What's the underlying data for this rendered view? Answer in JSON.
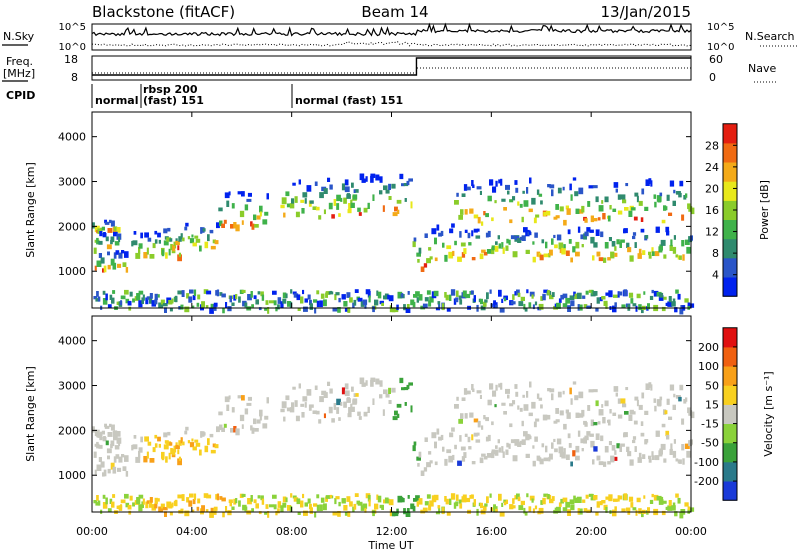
{
  "header": {
    "station": "Blackstone (fitACF)",
    "beam": "Beam 14",
    "date": "13/Jan/2015"
  },
  "panels": {
    "noise": {
      "left_label": "N.Sky",
      "right_label": "N.Search",
      "left_ticks": [
        "10^5",
        "10^0"
      ],
      "right_ticks": [
        "10^5",
        "10^0"
      ]
    },
    "freq": {
      "left_label_line1": "Freq.",
      "left_label_line2": "[MHz]",
      "right_label": "Nave",
      "left_ticks": [
        "18",
        "8"
      ],
      "right_ticks": [
        "60",
        "0"
      ]
    },
    "cpid": {
      "label": "CPID",
      "segments": [
        "normal",
        "rbsp 200",
        "(fast) 151",
        "normal (fast)  151"
      ]
    }
  },
  "chart_data": [
    {
      "type": "heatmap",
      "name": "power",
      "ylabel": "Slant Range [km]",
      "yticks": [
        1000,
        2000,
        3000,
        4000
      ],
      "ylim": [
        180,
        4550
      ],
      "xlim_hours": [
        0,
        24
      ],
      "colorbar": {
        "label": "Power [dB]",
        "ticks": [
          "28",
          "24",
          "20",
          "16",
          "12",
          "8",
          "4"
        ],
        "colors": [
          "#0022ee",
          "#2a55c8",
          "#2f8a6e",
          "#3fb24a",
          "#8acc2a",
          "#e8e81a",
          "#f4aa18",
          "#f06a12",
          "#e41e10"
        ]
      },
      "bands": [
        {
          "t": [
            0.0,
            1.0
          ],
          "r": [
            1900,
            2200
          ]
        },
        {
          "t": [
            0.0,
            1.1
          ],
          "r": [
            1500,
            1900
          ]
        },
        {
          "t": [
            0.1,
            1.4
          ],
          "r": [
            1050,
            1500
          ]
        },
        {
          "t": [
            1.5,
            3.5
          ],
          "r": [
            1350,
            1900
          ]
        },
        {
          "t": [
            2.8,
            5.0
          ],
          "r": [
            1500,
            2100
          ]
        },
        {
          "t": [
            5.0,
            7.0
          ],
          "r": [
            2000,
            2800
          ]
        },
        {
          "t": [
            7.5,
            10.5
          ],
          "r": [
            2200,
            3100
          ]
        },
        {
          "t": [
            10.0,
            12.8
          ],
          "r": [
            2300,
            3200
          ]
        },
        {
          "t": [
            12.8,
            14.5
          ],
          "r": [
            1100,
            2100
          ]
        },
        {
          "t": [
            14.5,
            24.0
          ],
          "r": [
            1300,
            2000
          ]
        },
        {
          "t": [
            14.5,
            24.0
          ],
          "r": [
            2100,
            3100
          ]
        },
        {
          "t": [
            0.0,
            24.0
          ],
          "r": [
            180,
            600
          ]
        }
      ]
    },
    {
      "type": "heatmap",
      "name": "velocity",
      "ylabel": "Slant Range [km]",
      "yticks": [
        1000,
        2000,
        3000,
        4000
      ],
      "ylim": [
        180,
        4550
      ],
      "xlim_hours": [
        0,
        24
      ],
      "xticks": [
        "00:00",
        "04:00",
        "08:00",
        "12:00",
        "16:00",
        "20:00",
        "00:00"
      ],
      "xlabel": "Time UT",
      "colorbar": {
        "label": "Velocity [m s⁻¹]",
        "ticks": [
          "200",
          "100",
          "50",
          "15",
          "-15",
          "-50",
          "-100",
          "-200"
        ],
        "colors": [
          "#1a3ad8",
          "#2a7a8a",
          "#3aa23a",
          "#8ad23a",
          "#c8c8c0",
          "#f8d020",
          "#f8a018",
          "#f06010",
          "#e01010"
        ]
      }
    }
  ]
}
